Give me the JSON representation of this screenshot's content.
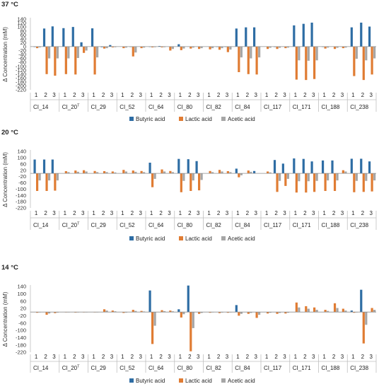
{
  "colors": {
    "butyric": "#2e6da4",
    "lactic": "#e07c33",
    "acetic": "#a6a6a6"
  },
  "chart_data": [
    {
      "type": "bar",
      "title": "37 °C",
      "ylabel": "Δ Concentration (mM)",
      "ylim": [
        -220,
        140
      ],
      "yticks": [
        "140",
        "120",
        "100",
        "80",
        "60",
        "40",
        "20",
        "0",
        "-20",
        "-40",
        "-60",
        "-80",
        "-100",
        "-120",
        "-140",
        "-160",
        "-180",
        "-200",
        "-220"
      ],
      "categories": [
        "CI_14",
        "CI_20",
        "CI_29",
        "CI_52",
        "CI_64",
        "CI_80",
        "CI_82",
        "CI_84",
        "CI_117",
        "CI_171",
        "CI_188",
        "CI_238"
      ],
      "category_superscripts": [
        "",
        "T",
        "",
        "",
        "",
        "",
        "",
        "",
        "",
        "",
        "",
        ""
      ],
      "replicates": [
        "1",
        "2",
        "3"
      ],
      "series": [
        {
          "name": "Butyric acid",
          "values": [
            [
              -2,
              92,
              103
            ],
            [
              94,
              100,
              22
            ],
            [
              93,
              -3,
              8
            ],
            [
              0,
              -1,
              0
            ],
            [
              -1,
              3,
              0
            ],
            [
              12,
              1,
              0
            ],
            [
              0,
              -1,
              -1
            ],
            [
              92,
              98,
              98
            ],
            [
              0,
              -2,
              1
            ],
            [
              108,
              116,
              122
            ],
            [
              -1,
              0,
              1
            ],
            [
              98,
              122,
              102
            ]
          ]
        },
        {
          "name": "Lactic acid",
          "values": [
            [
              -8,
              -140,
              -148
            ],
            [
              -140,
              -142,
              -32
            ],
            [
              -142,
              -10,
              -4
            ],
            [
              -8,
              -50,
              -8
            ],
            [
              -4,
              -4,
              -20
            ],
            [
              -18,
              -10,
              -12
            ],
            [
              -14,
              -16,
              -28
            ],
            [
              -130,
              -140,
              -142
            ],
            [
              -12,
              -12,
              -8
            ],
            [
              -168,
              -170,
              -165
            ],
            [
              -10,
              -12,
              -8
            ],
            [
              -150,
              -170,
              -142
            ]
          ]
        },
        {
          "name": "Acetic acid",
          "values": [
            [
              -4,
              -60,
              -60
            ],
            [
              -60,
              -58,
              -20
            ],
            [
              -55,
              -8,
              -3
            ],
            [
              -5,
              -30,
              -5
            ],
            [
              -3,
              -3,
              -12
            ],
            [
              -10,
              -5,
              -8
            ],
            [
              -8,
              -8,
              -15
            ],
            [
              -55,
              -60,
              -55
            ],
            [
              -6,
              -6,
              -5
            ],
            [
              -70,
              -72,
              -70
            ],
            [
              -5,
              -6,
              -5
            ],
            [
              -62,
              -70,
              -60
            ]
          ]
        }
      ],
      "legend": [
        "Butyric acid",
        "Lactic acid",
        "Acetic acid"
      ],
      "legend_position": "bottom"
    },
    {
      "type": "bar",
      "title": "20 °C",
      "ylabel": "Δ Concentration (mM)",
      "ylim": [
        -220,
        140
      ],
      "yticks": [
        "140",
        "100",
        "60",
        "20",
        "-20",
        "-60",
        "-100",
        "-140",
        "-180",
        "-220"
      ],
      "categories": [
        "CI_14",
        "CI_20",
        "CI_29",
        "CI_52",
        "CI_64",
        "CI_80",
        "CI_82",
        "CI_84",
        "CI_117",
        "CI_171",
        "CI_188",
        "CI_238"
      ],
      "category_superscripts": [
        "",
        "T",
        "",
        "",
        "",
        "",
        "",
        "",
        "",
        "",
        "",
        ""
      ],
      "replicates": [
        "1",
        "2",
        "3"
      ],
      "series": [
        {
          "name": "Butyric acid",
          "values": [
            [
              88,
              88,
              88
            ],
            [
              0,
              0,
              0
            ],
            [
              0,
              0,
              0
            ],
            [
              0,
              0,
              0
            ],
            [
              68,
              0,
              0
            ],
            [
              92,
              90,
              78
            ],
            [
              0,
              0,
              0
            ],
            [
              30,
              0,
              15
            ],
            [
              0,
              85,
              62
            ],
            [
              95,
              92,
              76
            ],
            [
              82,
              82,
              0
            ],
            [
              93,
              93,
              76
            ]
          ]
        },
        {
          "name": "Lactic acid",
          "values": [
            [
              -112,
              -112,
              -110
            ],
            [
              14,
              18,
              20
            ],
            [
              15,
              14,
              12
            ],
            [
              22,
              18,
              15
            ],
            [
              -88,
              25,
              15
            ],
            [
              -120,
              -112,
              -108
            ],
            [
              15,
              22,
              14
            ],
            [
              -25,
              18,
              0
            ],
            [
              12,
              -118,
              -80
            ],
            [
              -122,
              -122,
              -118
            ],
            [
              -112,
              -112,
              20
            ],
            [
              -120,
              -118,
              -115
            ]
          ]
        },
        {
          "name": "Acetic acid",
          "values": [
            [
              -45,
              -45,
              -45
            ],
            [
              8,
              10,
              12
            ],
            [
              8,
              8,
              6
            ],
            [
              12,
              10,
              8
            ],
            [
              -35,
              12,
              8
            ],
            [
              -48,
              -45,
              -42
            ],
            [
              8,
              12,
              8
            ],
            [
              -12,
              10,
              0
            ],
            [
              6,
              -48,
              -35
            ],
            [
              -50,
              -50,
              -48
            ],
            [
              -45,
              -45,
              12
            ],
            [
              -48,
              -48,
              -45
            ]
          ]
        }
      ],
      "legend": [
        "Butyric acid",
        "Lactic acid",
        "Acetic acid"
      ],
      "legend_position": "bottom"
    },
    {
      "type": "bar",
      "title": "14 °C",
      "ylabel": "Δ Concentration (mM)",
      "ylim": [
        -220,
        140
      ],
      "yticks": [
        "140",
        "100",
        "60",
        "20",
        "-20",
        "-60",
        "-100",
        "-140",
        "-180",
        "-220"
      ],
      "categories": [
        "CI_14",
        "CI_20",
        "CI_29",
        "CI_52",
        "CI_64",
        "CI_80",
        "CI_82",
        "CI_84",
        "CI_117",
        "CI_171",
        "CI_188",
        "CI_238"
      ],
      "category_superscripts": [
        "",
        "T",
        "",
        "",
        "",
        "",
        "",
        "",
        "",
        "",
        "",
        ""
      ],
      "replicates": [
        "1",
        "2",
        "3"
      ],
      "series": [
        {
          "name": "Butyric acid",
          "values": [
            [
              0,
              0,
              0
            ],
            [
              0,
              0,
              0
            ],
            [
              0,
              0,
              0
            ],
            [
              0,
              0,
              0
            ],
            [
              118,
              0,
              0
            ],
            [
              15,
              145,
              0
            ],
            [
              0,
              0,
              0
            ],
            [
              38,
              0,
              0
            ],
            [
              0,
              0,
              0
            ],
            [
              0,
              0,
              0
            ],
            [
              0,
              0,
              0
            ],
            [
              8,
              122,
              0
            ]
          ]
        },
        {
          "name": "Lactic acid",
          "values": [
            [
              -4,
              -15,
              -6
            ],
            [
              -2,
              -3,
              -2
            ],
            [
              -2,
              15,
              8
            ],
            [
              -5,
              12,
              6
            ],
            [
              -175,
              10,
              8
            ],
            [
              -30,
              -215,
              -10
            ],
            [
              -4,
              -6,
              -4
            ],
            [
              -20,
              -10,
              -32
            ],
            [
              -8,
              -10,
              -8
            ],
            [
              52,
              32,
              25
            ],
            [
              12,
              48,
              18
            ],
            [
              -4,
              -172,
              22
            ]
          ]
        },
        {
          "name": "Acetic acid",
          "values": [
            [
              -2,
              -8,
              -3
            ],
            [
              -1,
              -2,
              -1
            ],
            [
              -1,
              8,
              4
            ],
            [
              -3,
              6,
              3
            ],
            [
              -75,
              5,
              4
            ],
            [
              -12,
              -88,
              -5
            ],
            [
              -2,
              -3,
              -2
            ],
            [
              -10,
              -5,
              -15
            ],
            [
              -4,
              -5,
              -4
            ],
            [
              25,
              18,
              12
            ],
            [
              6,
              22,
              8
            ],
            [
              -2,
              -70,
              12
            ]
          ]
        }
      ],
      "legend": [
        "Butyric acid",
        "Lactic acid",
        "Acetic acid"
      ],
      "legend_position": "bottom"
    }
  ]
}
